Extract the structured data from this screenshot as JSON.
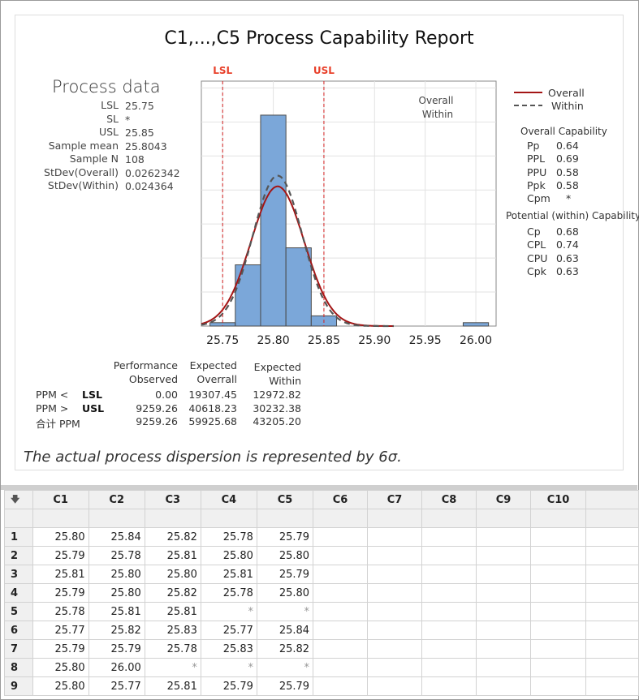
{
  "report": {
    "title": "C1,...,C5  Process Capability Report",
    "process_data": {
      "heading": "Process data",
      "rows": [
        {
          "label": "LSL",
          "value": "25.75"
        },
        {
          "label": "SL",
          "value": "*"
        },
        {
          "label": "USL",
          "value": "25.85"
        },
        {
          "label": "Sample mean",
          "value": "25.8043"
        },
        {
          "label": "Sample N",
          "value": "108"
        },
        {
          "label": "StDev(Overall)",
          "value": "0.0262342"
        },
        {
          "label": "StDev(Within)",
          "value": "0.024364"
        }
      ]
    },
    "legend": {
      "overall": "Overall",
      "within": "Within"
    },
    "plot_legend_text": {
      "overall": "Overall",
      "within": "Within"
    },
    "overall_capability": {
      "heading": "Overall  Capability",
      "rows": [
        {
          "label": "Pp",
          "value": "0.64"
        },
        {
          "label": "PPL",
          "value": "0.69"
        },
        {
          "label": "PPU",
          "value": "0.58"
        },
        {
          "label": "Ppk",
          "value": "0.58"
        },
        {
          "label": "Cpm",
          "value": "*"
        }
      ]
    },
    "potential_capability": {
      "heading": "Potential (within)  Capability",
      "rows": [
        {
          "label": "Cp",
          "value": "0.68"
        },
        {
          "label": "CPL",
          "value": "0.74"
        },
        {
          "label": "CPU",
          "value": "0.63"
        },
        {
          "label": "Cpk",
          "value": "0.63"
        }
      ]
    },
    "performance": {
      "headers": [
        [
          "Performance",
          "Observed"
        ],
        [
          "Expected",
          "Overrall"
        ],
        [
          "Expected",
          "Within"
        ]
      ],
      "rows": [
        {
          "label": "PPM <",
          "limit": "LSL",
          "values": [
            "0.00",
            "19307.45",
            "12972.82"
          ]
        },
        {
          "label": "PPM >",
          "limit": "USL",
          "values": [
            "9259.26",
            "40618.23",
            "30232.38"
          ]
        },
        {
          "label": "合计 PPM",
          "limit": "",
          "values": [
            "9259.26",
            "59925.68",
            "43205.20"
          ]
        }
      ]
    },
    "footnote": "The actual process dispersion is represented by 6σ."
  },
  "chart_data": {
    "type": "bar",
    "title": "C1,...,C5  Process Capability Report",
    "bins": [
      {
        "from": 25.7375,
        "to": 25.7625,
        "count": 1
      },
      {
        "from": 25.7625,
        "to": 25.7875,
        "count": 18
      },
      {
        "from": 25.7875,
        "to": 25.8125,
        "count": 62
      },
      {
        "from": 25.8125,
        "to": 25.8375,
        "count": 23
      },
      {
        "from": 25.8375,
        "to": 25.8625,
        "count": 3
      },
      {
        "from": 25.9875,
        "to": 26.0125,
        "count": 1
      }
    ],
    "xticks": [
      "25.75",
      "25.80",
      "25.85",
      "25.90",
      "25.95",
      "26.00"
    ],
    "xlim": [
      25.729,
      26.02
    ],
    "ylim": [
      0,
      72
    ],
    "spec_lines": [
      {
        "label": "LSL",
        "value": 25.75
      },
      {
        "label": "USL",
        "value": 25.85
      }
    ],
    "curves": [
      {
        "name": "Overall",
        "mean": 25.8043,
        "sd": 0.0262342,
        "color": "#a31515",
        "style": "solid"
      },
      {
        "name": "Within",
        "mean": 25.8043,
        "sd": 0.024364,
        "color": "#555555",
        "style": "dashed"
      }
    ],
    "n": 108,
    "bar_color": "#7ba7d9",
    "grid": true
  },
  "worksheet": {
    "corner_icon": "arrow-down-icon",
    "columns": [
      "C1",
      "C2",
      "C3",
      "C4",
      "C5",
      "C6",
      "C7",
      "C8",
      "C9",
      "C10"
    ],
    "rows": [
      {
        "n": "1",
        "cells": [
          "25.80",
          "25.84",
          "25.82",
          "25.78",
          "25.79"
        ]
      },
      {
        "n": "2",
        "cells": [
          "25.79",
          "25.78",
          "25.81",
          "25.80",
          "25.80"
        ]
      },
      {
        "n": "3",
        "cells": [
          "25.81",
          "25.80",
          "25.80",
          "25.81",
          "25.79"
        ]
      },
      {
        "n": "4",
        "cells": [
          "25.79",
          "25.80",
          "25.82",
          "25.78",
          "25.80"
        ]
      },
      {
        "n": "5",
        "cells": [
          "25.78",
          "25.81",
          "25.81",
          "*",
          "*"
        ]
      },
      {
        "n": "6",
        "cells": [
          "25.77",
          "25.82",
          "25.83",
          "25.77",
          "25.84"
        ]
      },
      {
        "n": "7",
        "cells": [
          "25.79",
          "25.79",
          "25.78",
          "25.83",
          "25.82"
        ]
      },
      {
        "n": "8",
        "cells": [
          "25.80",
          "26.00",
          "*",
          "*",
          "*"
        ]
      },
      {
        "n": "9",
        "cells": [
          "25.80",
          "25.77",
          "25.81",
          "25.79",
          "25.79"
        ]
      }
    ]
  }
}
